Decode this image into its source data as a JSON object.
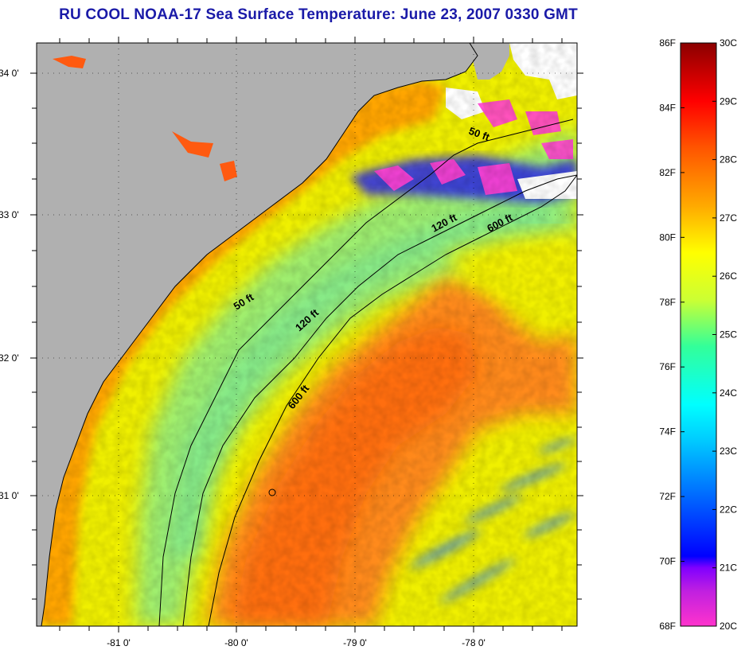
{
  "title": "RU COOL  NOAA-17  Sea Surface Temperature:  June 23, 2007 0330 GMT",
  "map": {
    "lat_ticks": [
      "34 0'",
      "33 0'",
      "32 0'",
      "31 0'"
    ],
    "lon_ticks": [
      "-81 0'",
      "-80 0'",
      "-79 0'",
      "-78 0'"
    ],
    "lon_range": [
      -81.7,
      -77.2
    ],
    "lat_range": [
      30.2,
      34.2
    ],
    "land_color": "#b0b0b0",
    "contour_labels": [
      "50 ft",
      "120 ft",
      "600 ft",
      "50 ft",
      "120 ft",
      "600 ft"
    ],
    "grid": "dotted",
    "layers": [
      "land",
      "sea-surface-temperature",
      "cloud-mask",
      "isobaths",
      "coastline"
    ]
  },
  "colorbar": {
    "f_labels": [
      "86F",
      "84F",
      "82F",
      "80F",
      "78F",
      "76F",
      "74F",
      "72F",
      "70F",
      "68F"
    ],
    "c_labels": [
      "30C",
      "29C",
      "28C",
      "27C",
      "26C",
      "25C",
      "24C",
      "23C",
      "22C",
      "21C",
      "20C"
    ],
    "f_range": [
      68,
      86
    ],
    "c_range": [
      20,
      30
    ],
    "colors": [
      "#ff33cc",
      "#8000ff",
      "#0000ff",
      "#0099ff",
      "#00ffff",
      "#33ff99",
      "#ccff33",
      "#ffff00",
      "#ffaa00",
      "#ff5500",
      "#ff0000",
      "#8b0000"
    ]
  }
}
